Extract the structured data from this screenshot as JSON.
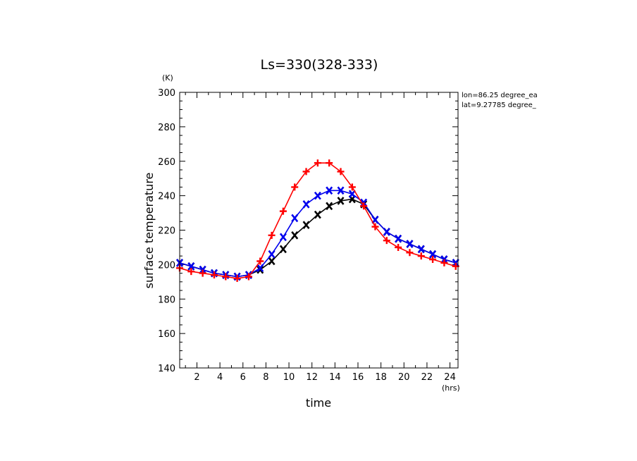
{
  "chart_data": {
    "type": "line",
    "title": "Ls=330(328-333)",
    "xlabel": "time",
    "ylabel": "surface temperature",
    "xunit": "(hrs)",
    "yunit": "(K)",
    "xlim": [
      0.5,
      24.7
    ],
    "ylim": [
      140,
      300
    ],
    "xticks": [
      2,
      4,
      6,
      8,
      10,
      12,
      14,
      16,
      18,
      20,
      22,
      24
    ],
    "yticks": [
      140,
      160,
      180,
      200,
      220,
      240,
      260,
      280,
      300
    ],
    "annotations": [
      "lon=86.25 degree_ea",
      "lat=9.27785 degree_"
    ],
    "grid": false,
    "series": [
      {
        "color": "#000000",
        "marker": "x",
        "x": [
          0.5,
          1.5,
          2.5,
          3.5,
          4.5,
          5.5,
          6.5,
          7.5,
          8.5,
          9.5,
          10.5,
          11.5,
          12.5,
          13.5,
          14.5,
          15.5,
          16.5,
          17.5,
          18.5,
          19.5,
          20.5,
          21.5,
          22.5,
          23.5,
          24.5
        ],
        "values": [
          201,
          199,
          197,
          195,
          194,
          193,
          194,
          197,
          202,
          209,
          217,
          223,
          229,
          234,
          237,
          238,
          235,
          226,
          219,
          215,
          212,
          209,
          206,
          203,
          201
        ]
      },
      {
        "color": "#0000ee",
        "marker": "x",
        "x": [
          0.5,
          1.5,
          2.5,
          3.5,
          4.5,
          5.5,
          6.5,
          7.5,
          8.5,
          9.5,
          10.5,
          11.5,
          12.5,
          13.5,
          14.5,
          15.5,
          16.5,
          17.5,
          18.5,
          19.5,
          20.5,
          21.5,
          22.5,
          23.5,
          24.5
        ],
        "values": [
          201,
          199,
          197,
          195,
          194,
          193,
          194,
          198,
          206,
          216,
          227,
          235,
          240,
          243,
          243,
          241,
          236,
          226,
          219,
          215,
          212,
          209,
          206,
          203,
          201
        ]
      },
      {
        "color": "#ff0000",
        "marker": "+",
        "x": [
          0.5,
          1.5,
          2.5,
          3.5,
          4.5,
          5.5,
          6.5,
          7.5,
          8.5,
          9.5,
          10.5,
          11.5,
          12.5,
          13.5,
          14.5,
          15.5,
          16.5,
          17.5,
          18.5,
          19.5,
          20.5,
          21.5,
          22.5,
          23.5,
          24.5
        ],
        "values": [
          198,
          196,
          195,
          194,
          193,
          192,
          193,
          202,
          217,
          231,
          245,
          254,
          259,
          259,
          254,
          245,
          234,
          222,
          214,
          210,
          207,
          205,
          203,
          201,
          199
        ]
      }
    ]
  }
}
